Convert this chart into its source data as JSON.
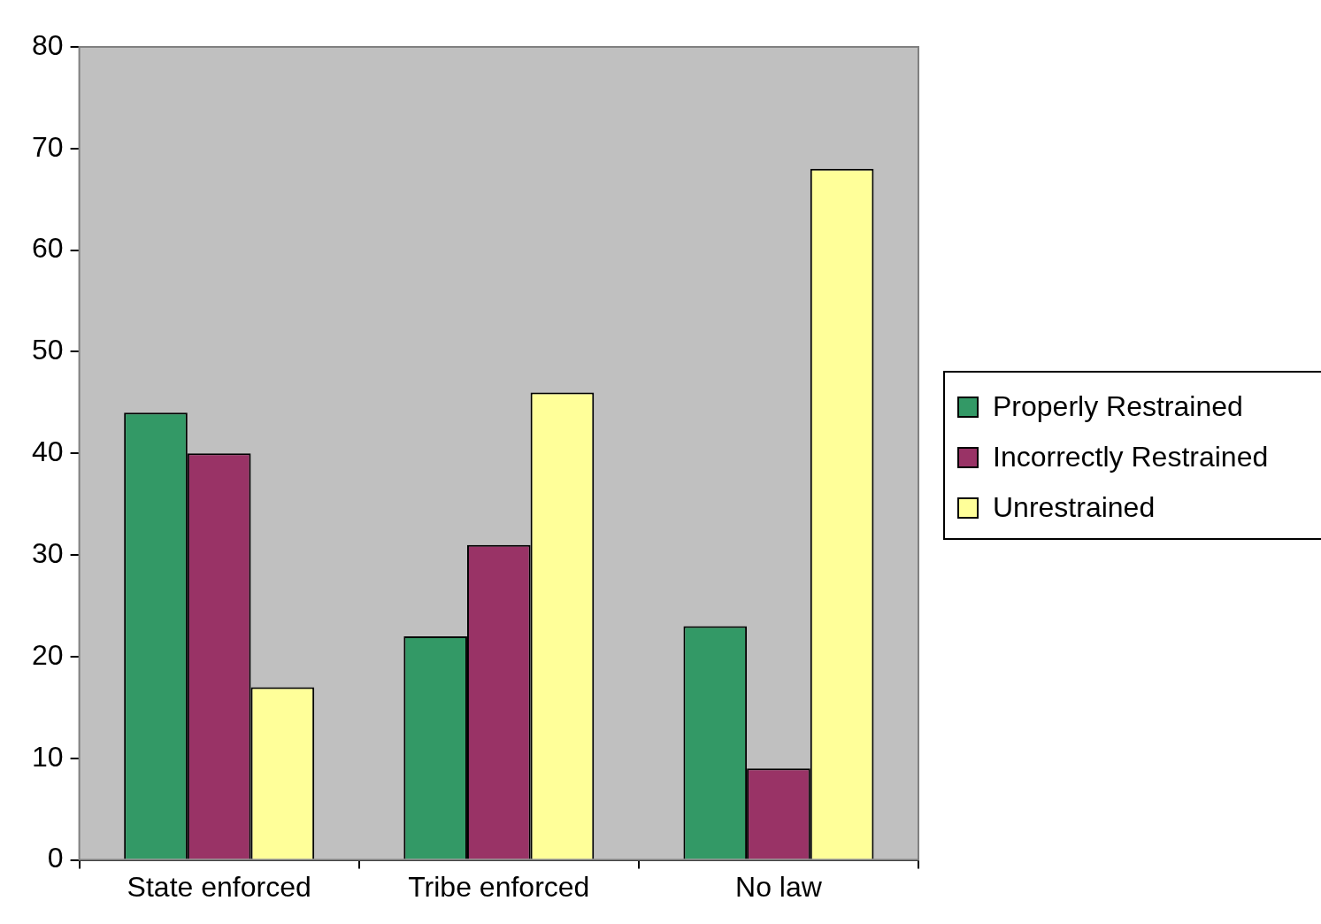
{
  "chart_data": {
    "type": "bar",
    "categories": [
      "State enforced",
      "Tribe enforced",
      "No law"
    ],
    "series": [
      {
        "name": "Properly Restrained",
        "color": "#339966",
        "values": [
          44,
          22,
          23
        ]
      },
      {
        "name": "Incorrectly Restrained",
        "color": "#993366",
        "values": [
          40,
          31,
          9
        ]
      },
      {
        "name": "Unrestrained",
        "color": "#ffff99",
        "values": [
          17,
          46,
          68
        ]
      }
    ],
    "ylim": [
      0,
      80
    ],
    "yticks": [
      0,
      10,
      20,
      30,
      40,
      50,
      60,
      70,
      80
    ],
    "legend": "right"
  }
}
